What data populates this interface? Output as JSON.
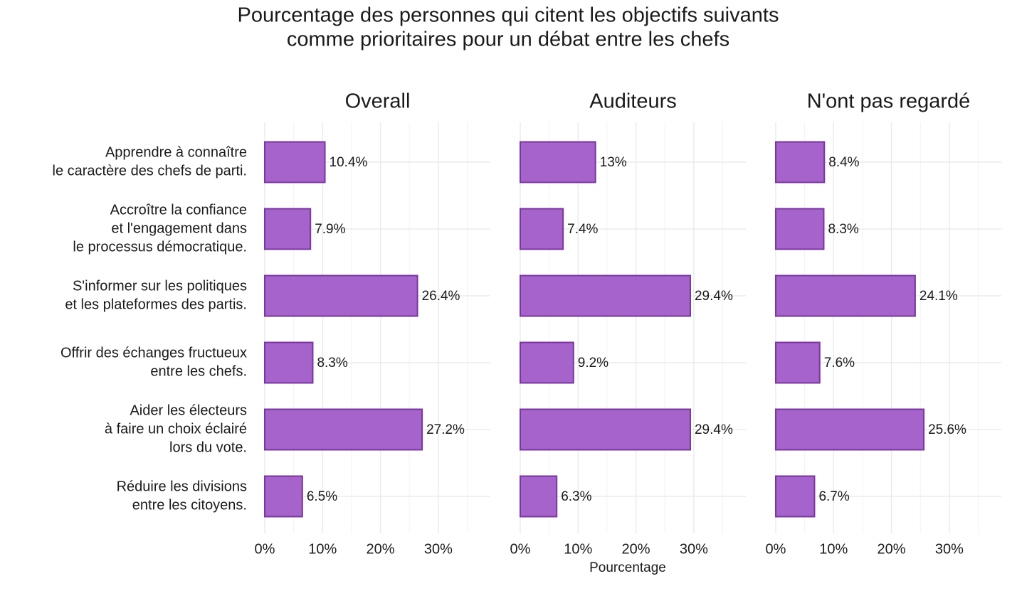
{
  "chart_data": {
    "type": "bar",
    "orientation": "horizontal",
    "facets": true,
    "title": [
      "Pourcentage des personnes qui citent les objectifs suivants",
      "comme prioritaires pour un débat entre les chefs"
    ],
    "xlabel": "Pourcentage",
    "categories": [
      [
        "Apprendre à connaître",
        "le caractère des chefs de parti."
      ],
      [
        "Accroître la confiance",
        "et l'engagement dans",
        "le processus démocratique."
      ],
      [
        "S'informer sur les politiques",
        "et les plateformes des partis."
      ],
      [
        "Offrir des échanges fructueux",
        "entre les chefs."
      ],
      [
        "Aider les électeurs",
        "à faire un choix éclairé",
        "lors du vote."
      ],
      [
        "Réduire les divisions",
        "entre les citoyens."
      ]
    ],
    "series": [
      {
        "name": "Overall",
        "color": "#a663cc",
        "values": [
          10.4,
          7.9,
          26.4,
          8.3,
          27.2,
          6.5
        ],
        "value_labels": [
          "10.4%",
          "7.9%",
          "26.4%",
          "8.3%",
          "27.2%",
          "6.5%"
        ]
      },
      {
        "name": "Auditeurs",
        "color": "#a663cc",
        "values": [
          13,
          7.4,
          29.4,
          9.2,
          29.4,
          6.3
        ],
        "value_labels": [
          "13%",
          "7.4%",
          "29.4%",
          "9.2%",
          "29.4%",
          "6.3%"
        ]
      },
      {
        "name": "N'ont pas regardé",
        "color": "#a663cc",
        "values": [
          8.4,
          8.3,
          24.1,
          7.6,
          25.6,
          6.7
        ],
        "value_labels": [
          "8.4%",
          "8.3%",
          "24.1%",
          "7.6%",
          "25.6%",
          "6.7%"
        ]
      }
    ],
    "bar_stroke": "#7a35a0",
    "xlim": [
      0,
      39
    ],
    "xticks": [
      {
        "value": 0,
        "label": "0%"
      },
      {
        "value": 10,
        "label": "10%"
      },
      {
        "value": 20,
        "label": "20%"
      },
      {
        "value": 30,
        "label": "30%"
      }
    ],
    "xminor": [
      5,
      15,
      25,
      35
    ],
    "grid": true
  }
}
